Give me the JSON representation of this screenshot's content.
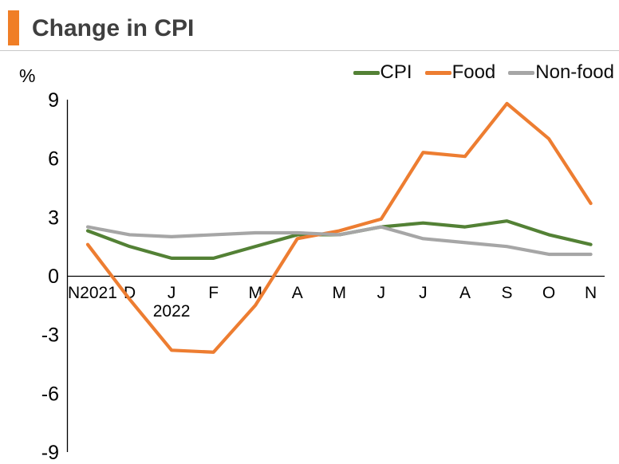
{
  "header": {
    "title": "Change in CPI",
    "accent_color": "#F07E26"
  },
  "chart_data": {
    "type": "line",
    "title": "Change in CPI",
    "ylabel": "%",
    "xlabel": "",
    "ylim": [
      -9,
      9
    ],
    "y_ticks": [
      9,
      6,
      3,
      0,
      -3,
      -6,
      -9
    ],
    "grid": false,
    "legend_position": "top-right",
    "categories": [
      "N2021",
      "D",
      "J",
      "F",
      "M",
      "A",
      "M",
      "J",
      "J",
      "A",
      "S",
      "O",
      "N"
    ],
    "x_sub_label": {
      "index": 2,
      "text": "2022"
    },
    "series": [
      {
        "name": "CPI",
        "color": "#538135",
        "values": [
          2.3,
          1.5,
          0.9,
          0.9,
          1.5,
          2.1,
          2.1,
          2.5,
          2.7,
          2.5,
          2.8,
          2.1,
          1.6
        ]
      },
      {
        "name": "Food",
        "color": "#ED7D31",
        "values": [
          1.6,
          -1.2,
          -3.8,
          -3.9,
          -1.5,
          1.9,
          2.3,
          2.9,
          6.3,
          6.1,
          8.8,
          7.0,
          3.7
        ]
      },
      {
        "name": "Non-food",
        "color": "#A6A6A6",
        "values": [
          2.5,
          2.1,
          2.0,
          2.1,
          2.2,
          2.2,
          2.1,
          2.5,
          1.9,
          1.7,
          1.5,
          1.1,
          1.1
        ]
      }
    ]
  }
}
